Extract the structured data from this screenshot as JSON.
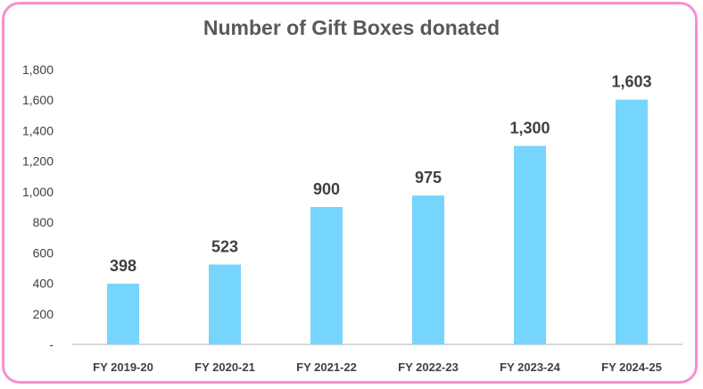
{
  "chart_data": {
    "type": "bar",
    "title": "Number of Gift Boxes donated",
    "categories": [
      "FY 2019-20",
      "FY 2020-21",
      "FY 2021-22",
      "FY 2022-23",
      "FY 2023-24",
      "FY 2024-25"
    ],
    "values": [
      398,
      523,
      900,
      975,
      1300,
      1603
    ],
    "data_labels": [
      "398",
      "523",
      "900",
      "975",
      "1,300",
      "1,603"
    ],
    "ylim": [
      0,
      1800
    ],
    "yticks": [
      0,
      200,
      400,
      600,
      800,
      1000,
      1200,
      1400,
      1600,
      1800
    ],
    "ytick_labels": [
      "-",
      "200",
      "400",
      "600",
      "800",
      "1,000",
      "1,200",
      "1,400",
      "1,600",
      "1,800"
    ],
    "xlabel": "",
    "ylabel": "",
    "grid": false,
    "legend": "none",
    "colors": {
      "bar": "#75d5fd",
      "border": "#f68fd4",
      "text": "#404040"
    }
  }
}
